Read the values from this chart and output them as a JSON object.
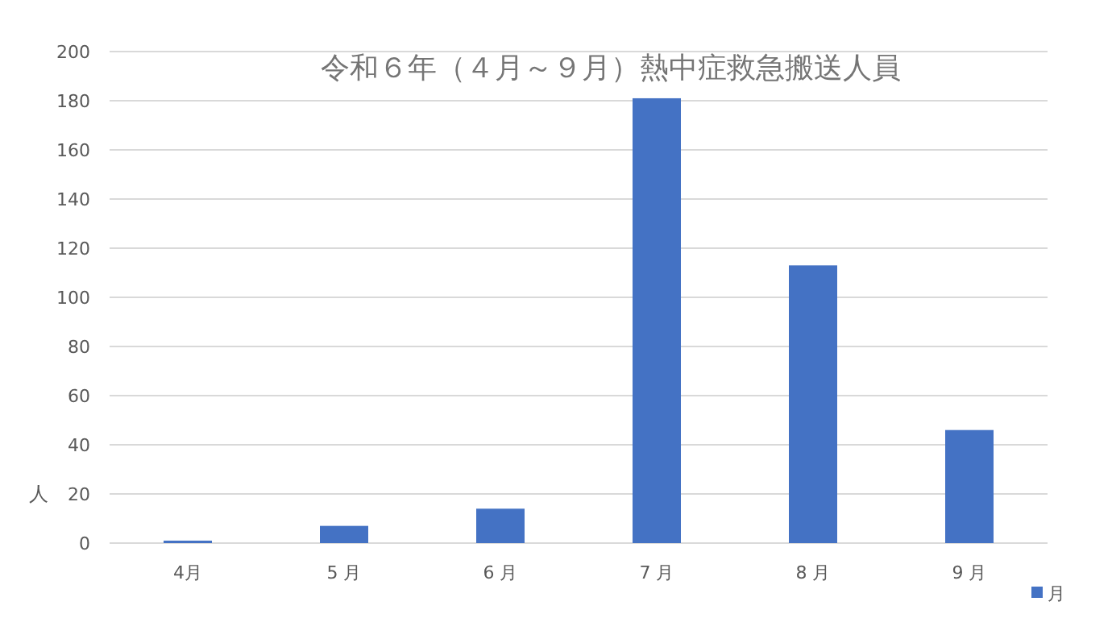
{
  "chart_data": {
    "type": "bar",
    "title": "令和６年（４月～９月）熱中症救急搬送人員",
    "ylabel": "人",
    "categories": [
      "4月",
      "5 月",
      "6 月",
      "7 月",
      "8 月",
      "9 月"
    ],
    "series": [
      {
        "name": "月",
        "color": "#4472c4",
        "values": [
          1,
          7,
          14,
          181,
          113,
          46
        ]
      }
    ],
    "ylim": [
      0,
      200
    ],
    "yticks": [
      0,
      20,
      40,
      60,
      80,
      100,
      120,
      140,
      160,
      180,
      200
    ],
    "grid": "y",
    "legend": "bottom right"
  }
}
